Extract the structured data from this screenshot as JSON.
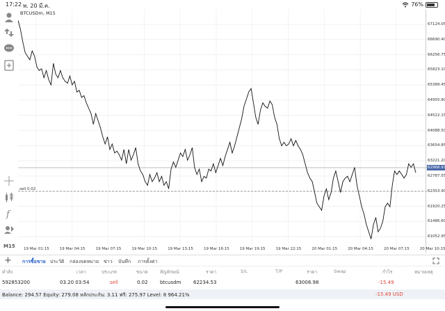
{
  "status": {
    "time": "17:22",
    "date": "พ. 20 มี.ค.",
    "battery": "76%"
  },
  "chart": {
    "title": "BTCUSDm, M15",
    "timeframe": "M15",
    "current_price_label": "62968.97",
    "sell_line_label": "sell 0.02",
    "price_labels": [
      "67124.05",
      "66690.40",
      "66256.75",
      "65823.10",
      "65389.45",
      "64955.80",
      "64522.15",
      "64088.50",
      "63654.85",
      "63221.20",
      "62787.55",
      "62353.90",
      "61920.25",
      "61486.60",
      "61052.95"
    ],
    "time_labels": [
      "19 Mar 01:15",
      "19 Mar 04:15",
      "19 Mar 07:15",
      "19 Mar 10:15",
      "19 Mar 13:15",
      "19 Mar 16:15",
      "19 Mar 19:15",
      "19 Mar 22:15",
      "20 Mar 01:15",
      "20 Mar 04:15",
      "20 Mar 07:15",
      "20 Mar 10:15"
    ]
  },
  "chart_data": {
    "type": "line",
    "title": "BTCUSDm, M15",
    "ylim": [
      60800,
      67400
    ],
    "grid": true,
    "series": [
      {
        "values": [
          67200,
          66950,
          66600,
          66300,
          66200,
          66100,
          66350,
          66200,
          65900,
          65800,
          65850,
          65600,
          65800,
          65550,
          65400,
          66000,
          65700,
          65600,
          65800,
          65600,
          65500,
          65450,
          65650,
          65400,
          65500,
          65200,
          65250,
          65050,
          65100,
          64900,
          64750,
          64600,
          64300,
          64600,
          64400,
          64200,
          63950,
          63750,
          63950,
          63600,
          63750,
          63500,
          63550,
          63450,
          63300,
          63600,
          63200,
          63600,
          63300,
          63450,
          63650,
          63200,
          63000,
          62900,
          62700,
          62600,
          62900,
          62700,
          62800,
          62950,
          62700,
          62850,
          62600,
          62700,
          62500,
          63050,
          63250,
          63100,
          63300,
          63500,
          63400,
          63600,
          63300,
          63450,
          63650,
          63100,
          62900,
          63050,
          62700,
          62850,
          62800,
          63050,
          63000,
          63200,
          62950,
          63150,
          63350,
          63150,
          63400,
          63600,
          63800,
          63500,
          63700,
          63950,
          64200,
          64450,
          64800,
          65000,
          65200,
          65300,
          64900,
          64500,
          64300,
          64700,
          64900,
          64800,
          64750,
          64950,
          64850,
          64500,
          64300,
          63900,
          63700,
          63800,
          63700,
          63750,
          63900,
          63700,
          63850,
          63700,
          63600,
          63450,
          63200,
          62950,
          62800,
          62700,
          62400,
          62100,
          62000,
          61900,
          62300,
          62500,
          62200,
          62400,
          62800,
          63000,
          62700,
          62400,
          62700,
          62800,
          62850,
          62700,
          62900,
          63100,
          62600,
          62300,
          62000,
          61800,
          61500,
          61300,
          61100,
          61500,
          61700,
          61300,
          61400,
          61600,
          62000,
          62100,
          62000,
          62600,
          63000,
          62900,
          63000,
          62900,
          62800,
          62900,
          63200,
          63100,
          63200,
          62950
        ]
      }
    ]
  },
  "tabs": [
    "การซื้อขาย",
    "ประวัติ",
    "กล่องจดหมาย",
    "ข่าว",
    "บันทึก",
    "การตั้งค่า"
  ],
  "columns": [
    "คำสั่ง",
    "เวลา",
    "ประเภท",
    "ขนาด",
    "สัญลักษณ์",
    "ราคา",
    "S/L",
    "T/P",
    "ราคา",
    "Swap",
    "กำไร",
    "หมายเหตุ"
  ],
  "order": {
    "id": "592853200",
    "time": "03.20 03:54",
    "type": "sell",
    "size": "0.02",
    "symbol": "btcusdm",
    "open_price": "62234.53",
    "current_price": "63008.98",
    "profit": "-15.49"
  },
  "balance": {
    "summary": "Balance: 294.57 Equity: 279.08 หลักประกัน: 3.11 ฟรี: 275.97 Level: 8 964.21%",
    "total": "-15.49  USD"
  }
}
